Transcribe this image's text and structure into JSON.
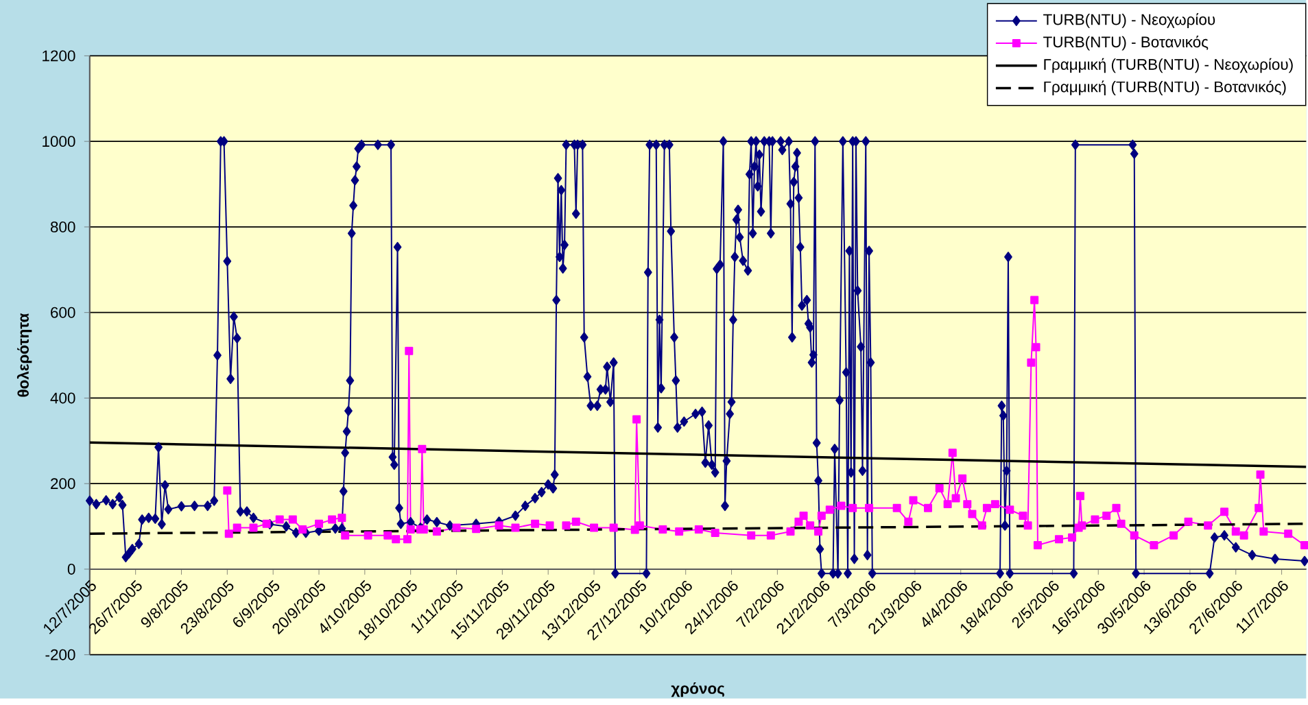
{
  "chart_data": {
    "type": "line",
    "xlabel": "χρόνος",
    "ylabel": "θολερότητα",
    "xlim": [
      "2005-07-12",
      "2006-07-18T12:00"
    ],
    "xticks": [
      {
        "value": "2005-07-12",
        "label": "12/7/2005"
      },
      {
        "value": "2005-07-26",
        "label": "26/7/2005"
      },
      {
        "value": "2005-08-09",
        "label": "9/8/2005"
      },
      {
        "value": "2005-08-23",
        "label": "23/8/2005"
      },
      {
        "value": "2005-09-06",
        "label": "6/9/2005"
      },
      {
        "value": "2005-09-20",
        "label": "20/9/2005"
      },
      {
        "value": "2005-10-04",
        "label": "4/10/2005"
      },
      {
        "value": "2005-10-18",
        "label": "18/10/2005"
      },
      {
        "value": "2005-11-01",
        "label": "1/11/2005"
      },
      {
        "value": "2005-11-15",
        "label": "15/11/2005"
      },
      {
        "value": "2005-11-29",
        "label": "29/11/2005"
      },
      {
        "value": "2005-12-13",
        "label": "13/12/2005"
      },
      {
        "value": "2005-12-27",
        "label": "27/12/2005"
      },
      {
        "value": "2006-01-10",
        "label": "10/1/2006"
      },
      {
        "value": "2006-01-24",
        "label": "24/1/2006"
      },
      {
        "value": "2006-02-07",
        "label": "7/2/2006"
      },
      {
        "value": "2006-02-21",
        "label": "21/2/2006"
      },
      {
        "value": "2006-03-07",
        "label": "7/3/2006"
      },
      {
        "value": "2006-03-21",
        "label": "21/3/2006"
      },
      {
        "value": "2006-04-04",
        "label": "4/4/2006"
      },
      {
        "value": "2006-04-18",
        "label": "18/4/2006"
      },
      {
        "value": "2006-05-02",
        "label": "2/5/2006"
      },
      {
        "value": "2006-05-16",
        "label": "16/5/2006"
      },
      {
        "value": "2006-05-30",
        "label": "30/5/2006"
      },
      {
        "value": "2006-06-13",
        "label": "13/6/2006"
      },
      {
        "value": "2006-06-27",
        "label": "27/6/2006"
      },
      {
        "value": "2006-07-11",
        "label": "11/7/2006"
      }
    ],
    "ylim": [
      -200,
      1200
    ],
    "yticks": [
      -200,
      0,
      200,
      400,
      600,
      800,
      1000,
      1200
    ],
    "grid": "y",
    "legend": "top right",
    "series": [
      {
        "name": "TURB(NTU) - Νεοχωρίου",
        "color": "#000080",
        "marker": "diamond",
        "line_style": "solid",
        "x": [
          "2005-07-12",
          "2005-07-14",
          "2005-07-17",
          "2005-07-19",
          "2005-07-21",
          "2005-07-22",
          "2005-07-23",
          "2005-07-24",
          "2005-07-25",
          "2005-07-27",
          "2005-07-28",
          "2005-07-30",
          "2005-08-01",
          "2005-08-02",
          "2005-08-03",
          "2005-08-04",
          "2005-08-05",
          "2005-08-09",
          "2005-08-13",
          "2005-08-17",
          "2005-08-19",
          "2005-08-20",
          "2005-08-21",
          "2005-08-22",
          "2005-08-23",
          "2005-08-24",
          "2005-08-25",
          "2005-08-26",
          "2005-08-27",
          "2005-08-29",
          "2005-08-31",
          "2005-09-05",
          "2005-09-10",
          "2005-09-13",
          "2005-09-16",
          "2005-09-20",
          "2005-09-25",
          "2005-09-27",
          "2005-09-27T12:00",
          "2005-09-28",
          "2005-09-28T12:00",
          "2005-09-29",
          "2005-09-29T12:00",
          "2005-09-30",
          "2005-09-30T12:00",
          "2005-10-01",
          "2005-10-01T12:00",
          "2005-10-02",
          "2005-10-03",
          "2005-10-08",
          "2005-10-12",
          "2005-10-12T12:00",
          "2005-10-13",
          "2005-10-14",
          "2005-10-14T12:00",
          "2005-10-15",
          "2005-10-18",
          "2005-10-21",
          "2005-10-23",
          "2005-10-26",
          "2005-10-30",
          "2005-11-07",
          "2005-11-14",
          "2005-11-19",
          "2005-11-22",
          "2005-11-25",
          "2005-11-27",
          "2005-11-29",
          "2005-11-30T12:00",
          "2005-12-01",
          "2005-12-01T12:00",
          "2005-12-02",
          "2005-12-02T12:00",
          "2005-12-03",
          "2005-12-03T12:00",
          "2005-12-04",
          "2005-12-04T12:00",
          "2005-12-07",
          "2005-12-07T12:00",
          "2005-12-08",
          "2005-12-09T12:00",
          "2005-12-10",
          "2005-12-11",
          "2005-12-12",
          "2005-12-14",
          "2005-12-15",
          "2005-12-16T12:00",
          "2005-12-17",
          "2005-12-18",
          "2005-12-19",
          "2005-12-19T12:00",
          "2005-12-29",
          "2005-12-29T12:00",
          "2005-12-30",
          "2006-01-01",
          "2006-01-01T12:00",
          "2006-01-02",
          "2006-01-02T12:00",
          "2006-01-03T12:00",
          "2006-01-05",
          "2006-01-05T12:00",
          "2006-01-06T12:00",
          "2006-01-07",
          "2006-01-07T12:00",
          "2006-01-09T12:00",
          "2006-01-13",
          "2006-01-15",
          "2006-01-16",
          "2006-01-17",
          "2006-01-18",
          "2006-01-19",
          "2006-01-19T12:00",
          "2006-01-20T12:00",
          "2006-01-21T12:00",
          "2006-01-22",
          "2006-01-22T12:00",
          "2006-01-23T12:00",
          "2006-01-24",
          "2006-01-24T12:00",
          "2006-01-25",
          "2006-01-25T12:00",
          "2006-01-26",
          "2006-01-26T12:00",
          "2006-01-27T12:00",
          "2006-01-29",
          "2006-01-29T12:00",
          "2006-01-30",
          "2006-01-30T12:00",
          "2006-01-31",
          "2006-01-31T12:00",
          "2006-02-01",
          "2006-02-01T12:00",
          "2006-02-02",
          "2006-02-03",
          "2006-02-04T12:00",
          "2006-02-05",
          "2006-02-05T12:00",
          "2006-02-08",
          "2006-02-08T12:00",
          "2006-02-10T12:00",
          "2006-02-11",
          "2006-02-11T12:00",
          "2006-02-12",
          "2006-02-12T12:00",
          "2006-02-13",
          "2006-02-13T12:00",
          "2006-02-14",
          "2006-02-14T12:00",
          "2006-02-16",
          "2006-02-16T12:00",
          "2006-02-17",
          "2006-02-17T12:00",
          "2006-02-18",
          "2006-02-18T12:00",
          "2006-02-19",
          "2006-02-19T12:00",
          "2006-02-20",
          "2006-02-20T12:00",
          "2006-02-24",
          "2006-02-24T12:00",
          "2006-02-25T12:00",
          "2006-02-26",
          "2006-02-27",
          "2006-02-28",
          "2006-02-28T12:00",
          "2006-03-01",
          "2006-03-01T12:00",
          "2006-03-02",
          "2006-03-02T12:00",
          "2006-03-03",
          "2006-03-03T12:00",
          "2006-03-04T12:00",
          "2006-03-05",
          "2006-03-06",
          "2006-03-06T12:00",
          "2006-03-07",
          "2006-03-07T12:00",
          "2006-03-08",
          "2006-04-16",
          "2006-04-16T12:00",
          "2006-04-17",
          "2006-04-17T12:00",
          "2006-04-18",
          "2006-04-18T12:00",
          "2006-04-19",
          "2006-05-08T12:00",
          "2006-05-09",
          "2006-05-26T12:00",
          "2006-05-27",
          "2006-05-27T12:00",
          "2006-06-19",
          "2006-06-20T12:00",
          "2006-06-23T12:00",
          "2006-06-27",
          "2006-07-02",
          "2006-07-09",
          "2006-07-18"
        ],
        "values": [
          160,
          152,
          161,
          152,
          168,
          150,
          28,
          37,
          47,
          59,
          116,
          120,
          118,
          285,
          105,
          196,
          140,
          147,
          148,
          148,
          160,
          500,
          1000,
          1000,
          720,
          445,
          590,
          540,
          135,
          135,
          120,
          105,
          100,
          85,
          85,
          90,
          95,
          95,
          182,
          272,
          322,
          370,
          441,
          785,
          850,
          909,
          941,
          983,
          992,
          992,
          992,
          262,
          244,
          753,
          143,
          106,
          110,
          97,
          116,
          110,
          102,
          106,
          111,
          125,
          148,
          166,
          180,
          198,
          189,
          221,
          629,
          914,
          730,
          886,
          703,
          758,
          992,
          992,
          831,
          992,
          992,
          542,
          450,
          382,
          382,
          420,
          420,
          473,
          391,
          483,
          -10,
          -10,
          694,
          992,
          992,
          331,
          583,
          423,
          992,
          992,
          790,
          542,
          441,
          331,
          345,
          363,
          368,
          249,
          336,
          244,
          226,
          702,
          712,
          1000,
          148,
          253,
          363,
          391,
          583,
          730,
          817,
          840,
          776,
          721,
          698,
          923,
          1000,
          785,
          941,
          1000,
          895,
          969,
          836,
          1000,
          1000,
          785,
          1000,
          1000,
          980,
          1000,
          854,
          542,
          905,
          941,
          973,
          868,
          753,
          616,
          629,
          574,
          565,
          483,
          501,
          1000,
          295,
          207,
          47,
          -10,
          -10,
          281,
          -10,
          395,
          1000,
          460,
          -10,
          744,
          226,
          1000,
          24,
          1000,
          651,
          520,
          230,
          1000,
          33,
          744,
          483,
          -10,
          -10,
          382,
          359,
          102,
          230,
          730,
          -10,
          -10,
          992,
          992,
          971,
          -10,
          -10,
          74,
          79,
          51,
          33,
          24,
          19
        ]
      },
      {
        "name": "TURB(NTU) - Βοτανικός",
        "color": "#ff00ff",
        "marker": "square",
        "line_style": "solid",
        "x": [
          "2005-08-23",
          "2005-08-23T12:00",
          "2005-08-26",
          "2005-08-31",
          "2005-09-04",
          "2005-09-08",
          "2005-09-12",
          "2005-09-15",
          "2005-09-20",
          "2005-09-24",
          "2005-09-27",
          "2005-09-28",
          "2005-10-05",
          "2005-10-11",
          "2005-10-13T12:00",
          "2005-10-17",
          "2005-10-17T12:00",
          "2005-10-18",
          "2005-10-21",
          "2005-10-21T12:00",
          "2005-10-22",
          "2005-10-26",
          "2005-11-01",
          "2005-11-07",
          "2005-11-14",
          "2005-11-19",
          "2005-11-25",
          "2005-11-29T12:00",
          "2005-12-02",
          "2005-12-04T12:00",
          "2005-12-07T12:00",
          "2005-12-13",
          "2005-12-19",
          "2005-12-25T12:00",
          "2005-12-26",
          "2005-12-27",
          "2006-01-03",
          "2006-01-08",
          "2006-01-14",
          "2006-01-19",
          "2006-01-30",
          "2006-02-05",
          "2006-02-11",
          "2006-02-13T12:00",
          "2006-02-15",
          "2006-02-17",
          "2006-02-19T12:00",
          "2006-02-20T12:00",
          "2006-02-23",
          "2006-02-26T12:00",
          "2006-03-02",
          "2006-03-07",
          "2006-03-15T12:00",
          "2006-03-19",
          "2006-03-20T12:00",
          "2006-03-25",
          "2006-03-28T12:00",
          "2006-03-31",
          "2006-04-01T12:00",
          "2006-04-02T12:00",
          "2006-04-04T12:00",
          "2006-04-06",
          "2006-04-07T12:00",
          "2006-04-10T12:00",
          "2006-04-12",
          "2006-04-14T12:00",
          "2006-04-19",
          "2006-04-23",
          "2006-04-24T12:00",
          "2006-04-25T12:00",
          "2006-04-26T12:00",
          "2006-04-27",
          "2006-04-27T12:00",
          "2006-05-04",
          "2006-05-08",
          "2006-05-10",
          "2006-05-10T12:00",
          "2006-05-11",
          "2006-05-15",
          "2006-05-18T12:00",
          "2006-05-21T12:00",
          "2006-05-23",
          "2006-05-27",
          "2006-06-02",
          "2006-06-08",
          "2006-06-12T12:00",
          "2006-06-18T12:00",
          "2006-06-23T12:00",
          "2006-06-27",
          "2006-06-29T12:00",
          "2006-07-04",
          "2006-07-04T12:00",
          "2006-07-05T12:00",
          "2006-07-13",
          "2006-07-18"
        ],
        "values": [
          184,
          83,
          97,
          97,
          106,
          116,
          116,
          93,
          106,
          116,
          120,
          79,
          79,
          79,
          70,
          70,
          510,
          93,
          93,
          281,
          93,
          88,
          97,
          94,
          102,
          97,
          106,
          102,
          null,
          102,
          111,
          97,
          97,
          92,
          350,
          102,
          93,
          88,
          93,
          85,
          79,
          79,
          88,
          111,
          125,
          102,
          88,
          125,
          139,
          148,
          143,
          143,
          143,
          111,
          161,
          143,
          189,
          152,
          272,
          166,
          212,
          152,
          129,
          102,
          143,
          152,
          139,
          125,
          102,
          483,
          629,
          519,
          56,
          70,
          74,
          97,
          171,
          102,
          116,
          125,
          143,
          106,
          79,
          56,
          79,
          111,
          102,
          134,
          88,
          79,
          143,
          221,
          88,
          83,
          56
        ]
      },
      {
        "name": "Γραμμική (TURB(NTU) - Νεοχωρίου)",
        "type": "line",
        "color": "#000000",
        "marker": "none",
        "line_style": "solid",
        "x": [
          "2005-07-12",
          "2006-07-18T12:00"
        ],
        "values": [
          296,
          239
        ]
      },
      {
        "name": "Γραμμική (TURB(NTU) - Βοτανικός)",
        "type": "line",
        "color": "#000000",
        "marker": "none",
        "line_style": "dashed",
        "x": [
          "2005-07-12",
          "2006-07-18T12:00"
        ],
        "values": [
          83,
          106
        ]
      }
    ]
  }
}
